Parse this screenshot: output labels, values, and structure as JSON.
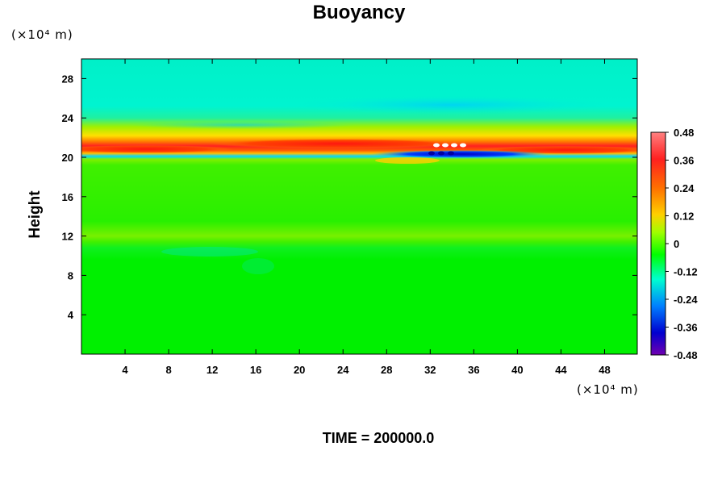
{
  "chart_data": {
    "type": "heatmap",
    "title": "Buoyancy",
    "ylabel": "Height",
    "x_unit_label": "(×10⁴ m)",
    "y_unit_label": "(×10⁴ m)",
    "xlim": [
      0,
      51
    ],
    "ylim": [
      0,
      30
    ],
    "x_ticks": [
      4,
      8,
      12,
      16,
      20,
      24,
      28,
      32,
      36,
      40,
      44,
      48
    ],
    "y_ticks": [
      4,
      8,
      12,
      16,
      20,
      24,
      28
    ],
    "x_tick_labels": [
      "4",
      "8",
      "12",
      "16",
      "20",
      "24",
      "28",
      "32",
      "36",
      "40",
      "44",
      "48"
    ],
    "y_tick_labels": [
      "4",
      "8",
      "12",
      "16",
      "20",
      "24",
      "28"
    ],
    "colorbar": {
      "range": [
        -0.48,
        0.48
      ],
      "tick_values": [
        0.48,
        0.36,
        0.24,
        0.12,
        0,
        -0.12,
        -0.24,
        -0.36,
        -0.48
      ],
      "tick_labels": [
        "0.48",
        "0.36",
        "0.24",
        "0.12",
        "0",
        "-0.12",
        "-0.24",
        "-0.36",
        "-0.48"
      ],
      "colors": [
        "#ff8080",
        "#ff2020",
        "#ff7000",
        "#ffd000",
        "#a0ff00",
        "#00ff00",
        "#00ffd0",
        "#0080ff",
        "#0000d0",
        "#7000b0"
      ]
    },
    "background_value": 0.0,
    "features": [
      {
        "label": "cyan upper band",
        "y": [
          22.5,
          30
        ],
        "value": -0.16
      },
      {
        "label": "red strong band",
        "y": [
          20.5,
          21.9
        ],
        "value": 0.36
      },
      {
        "label": "blue dipole core",
        "x": [
          28,
          42
        ],
        "y": [
          20.0,
          20.6
        ],
        "value": -0.38
      },
      {
        "label": "light warm layer",
        "y": [
          11,
          12
        ],
        "value": 0.05
      },
      {
        "label": "cool layer",
        "y": [
          10,
          11
        ],
        "value": -0.05
      }
    ],
    "annotation": "TIME = 200000.0"
  }
}
